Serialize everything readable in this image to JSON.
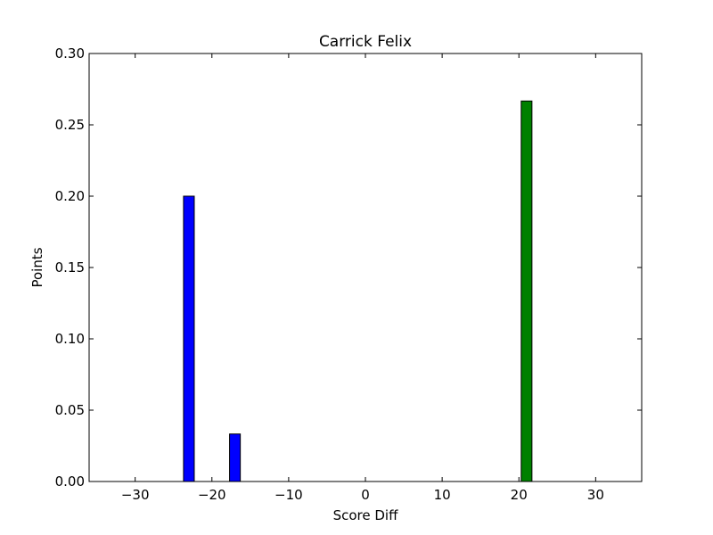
{
  "chart_data": {
    "type": "bar",
    "title": "Carrick Felix",
    "xlabel": "Score Diff",
    "ylabel": "Points",
    "xlim": [
      -36,
      36
    ],
    "ylim": [
      0,
      0.3
    ],
    "xticks": [
      -30,
      -20,
      -10,
      0,
      10,
      20,
      30
    ],
    "xtick_labels": [
      "−30",
      "−20",
      "−10",
      "0",
      "10",
      "20",
      "30"
    ],
    "yticks": [
      0.0,
      0.05,
      0.1,
      0.15,
      0.2,
      0.25,
      0.3
    ],
    "ytick_labels": [
      "0.00",
      "0.05",
      "0.10",
      "0.15",
      "0.20",
      "0.25",
      "0.30"
    ],
    "bar_width": 1.4,
    "bars": [
      {
        "x": -23,
        "value": 0.2,
        "color": "#0000ff"
      },
      {
        "x": -17,
        "value": 0.0333,
        "color": "#0000ff"
      },
      {
        "x": 21,
        "value": 0.2667,
        "color": "#008000"
      }
    ],
    "baseline": {
      "y": 0,
      "style": "dashed",
      "color": "#000000"
    },
    "grid": false,
    "legend": "none"
  }
}
